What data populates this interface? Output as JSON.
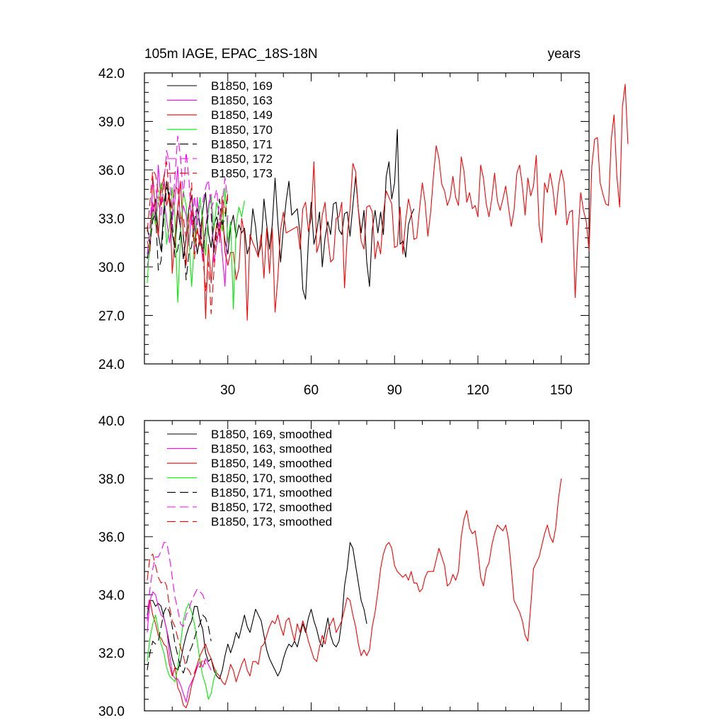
{
  "page": {
    "title_left": "105m IAGE, EPAC_18S-18N",
    "title_right": "years"
  },
  "chart_data": [
    {
      "type": "line",
      "title": "105m IAGE, EPAC_18S-18N",
      "ylabel": "",
      "xlabel": "",
      "right_label": "years",
      "xlim": [
        0,
        160
      ],
      "ylim": [
        24,
        42
      ],
      "xticks": [
        30,
        60,
        90,
        120,
        150
      ],
      "xtick_labels": [
        "30",
        "60",
        "90",
        "120",
        "150"
      ],
      "yticks": [
        24,
        27,
        30,
        33,
        36,
        39,
        42
      ],
      "ytick_labels": [
        "24.0",
        "27.0",
        "30.0",
        "33.0",
        "36.0",
        "39.0",
        "42.0"
      ],
      "legend_position": "top-left",
      "grid": false,
      "series": [
        {
          "name": "B1850, 169",
          "color": "#000000",
          "dash": "solid",
          "values": [
            30.5,
            31.5,
            33.4,
            34.2,
            32.0,
            31.0,
            33.7,
            35.3,
            34.0,
            32.0,
            31.2,
            33.5,
            32.4,
            30.5,
            31.8,
            33.6,
            34.4,
            32.5,
            30.8,
            31.9,
            33.5,
            34.6,
            32.1,
            31.2,
            32.6,
            33.1,
            32.2,
            32.9,
            31.6,
            30.8,
            32.5,
            33.2,
            31.8,
            32.6,
            32.1,
            32.4,
            30.8,
            31.4,
            33.6,
            32.5,
            30.7,
            31.4,
            34.2,
            32.6,
            31.1,
            32.6,
            35.5,
            32.8,
            30.3,
            32.4,
            34.1,
            35.3,
            33.2,
            33.4,
            33.6,
            32.0,
            28.6,
            28.0,
            31.6,
            34.0,
            31.4,
            32.2,
            33.4,
            30.0,
            31.8,
            32.8,
            32.0,
            33.9,
            34.0,
            32.3,
            32.0,
            33.3,
            33.4,
            31.9,
            33.8,
            35.6,
            33.5,
            32.1,
            33.5,
            30.3,
            28.8,
            32.3,
            33.5,
            32.1,
            33.4,
            32.0,
            35.6,
            36.5,
            34.2,
            35.2,
            38.5,
            31.4,
            31.6,
            30.6,
            32.6,
            33.2,
            33.6
          ]
        },
        {
          "name": "B1850, 163",
          "color": "#ff00ff",
          "dash": "solid",
          "values": [
            30.0,
            31.0,
            34.0,
            32.8,
            36.3,
            33.9,
            34.2,
            32.9,
            31.5,
            32.9,
            34.2,
            36.2,
            32.4,
            33.8,
            33.2,
            31.3,
            33.5,
            31.0,
            34.3,
            32.2,
            30.4,
            32.4,
            33.8,
            34.5,
            30.3,
            31.4,
            32.8,
            30.8,
            28.8,
            33.2
          ]
        },
        {
          "name": "B1850, 149",
          "color": "#ff0000",
          "dash": "solid",
          "values": [
            31.6,
            31.0,
            35.6,
            33.3,
            31.9,
            34.9,
            35.5,
            33.8,
            34.6,
            29.6,
            31.9,
            33.7,
            35.3,
            31.9,
            30.1,
            32.7,
            33.4,
            31.4,
            32.4,
            31.3,
            33.1,
            26.8,
            31.4,
            29.0,
            31.2,
            32.7,
            31.9,
            33.9,
            30.9,
            30.1,
            30.9,
            30.9,
            29.2,
            29.9,
            33.0,
            32.0,
            26.7,
            32.0,
            31.5,
            31.1,
            30.6,
            32.0,
            29.3,
            32.4,
            29.6,
            32.4,
            27.2,
            29.3,
            32.3,
            33.4,
            32.1,
            32.2,
            32.3,
            32.4,
            32.5,
            31.1,
            33.6,
            34.0,
            32.2,
            33.0,
            36.5,
            30.9,
            31.5,
            33.2,
            34.0,
            31.8,
            30.3,
            30.5,
            33.0,
            33.1,
            34.0,
            28.7,
            31.9,
            33.6,
            36.4,
            35.9,
            33.5,
            31.6,
            31.1,
            33.7,
            33.8,
            33.4,
            30.5,
            31.6,
            30.8,
            33.3,
            34.7,
            34.3,
            33.9,
            31.2,
            31.3,
            33.7,
            30.8,
            32.9,
            34.2,
            33.4,
            31.7,
            31.8,
            33.6,
            35.2,
            34.0,
            31.9,
            33.4,
            35.6,
            37.5,
            36.7,
            35.1,
            34.7,
            33.8,
            34.3,
            35.6,
            34.3,
            33.8,
            36.8,
            35.9,
            34.0,
            34.6,
            33.6,
            33.8,
            33.1,
            36.3,
            35.5,
            33.9,
            33.1,
            34.2,
            35.8,
            34.1,
            33.5,
            34.2,
            35.0,
            33.7,
            32.5,
            33.5,
            35.8,
            36.3,
            35.0,
            33.2,
            35.5,
            34.4,
            35.0,
            36.9,
            32.6,
            31.5,
            35.2,
            34.6,
            35.8,
            34.8,
            33.2,
            35.0,
            36.0,
            35.2,
            32.6,
            33.4,
            33.5,
            28.1,
            31.9,
            34.6,
            33.5,
            32.8,
            31.0,
            36.2,
            37.9,
            38.0,
            35.2,
            34.5,
            33.9,
            33.8,
            37.9,
            39.4,
            35.6,
            33.7,
            39.9,
            41.3,
            37.6
          ]
        },
        {
          "name": "B1850, 170",
          "color": "#00ee00",
          "dash": "solid",
          "values": [
            29.0,
            31.8,
            33.4,
            32.6,
            34.2,
            35.2,
            33.9,
            31.4,
            32.5,
            34.9,
            33.0,
            27.8,
            32.0,
            34.7,
            33.8,
            31.8,
            28.8,
            31.6,
            33.0,
            34.3,
            32.7,
            30.7,
            33.4,
            34.4,
            32.3,
            34.0,
            33.2,
            32.2,
            34.9,
            31.5,
            32.8,
            27.4,
            32.6,
            33.7,
            33.1,
            34.1
          ]
        },
        {
          "name": "B1850, 171",
          "color": "#000000",
          "dash": "dashed",
          "values": [
            32.5,
            31.4,
            32.9,
            33.4,
            29.8,
            30.4,
            33.1,
            34.9,
            34.5,
            32.8,
            30.6,
            31.1,
            32.2,
            32.0,
            29.2,
            30.8,
            31.3,
            32.9,
            33.6,
            32.6,
            30.9,
            32.3,
            33.3,
            33.3,
            30.9,
            32.3,
            34.2,
            32.6,
            33.0,
            34.5
          ]
        },
        {
          "name": "B1850, 172",
          "color": "#ff00ff",
          "dash": "dashed",
          "values": [
            30.8,
            32.4,
            35.1,
            34.9,
            34.0,
            33.2,
            35.2,
            37.2,
            36.4,
            33.2,
            35.7,
            38.1,
            36.8,
            34.3,
            37.1,
            35.5,
            32.6,
            34.4,
            32.6,
            33.8,
            34.0,
            34.9,
            35.4,
            33.6,
            34.1,
            34.8,
            32.9,
            33.9,
            35.5,
            34.1
          ]
        },
        {
          "name": "B1850, 173",
          "color": "#ff0000",
          "dash": "dashed",
          "values": [
            32.2,
            34.0,
            36.0,
            35.7,
            34.6,
            33.7,
            35.6,
            36.5,
            34.2,
            33.6,
            35.0,
            34.8,
            33.0,
            33.1,
            31.7,
            33.3,
            35.2,
            30.5,
            32.2,
            31.8,
            30.8,
            28.5,
            30.3,
            27.1,
            29.7,
            31.9,
            31.5,
            34.4,
            33.3,
            34.6
          ]
        }
      ]
    },
    {
      "type": "line",
      "title": "",
      "ylabel": "",
      "xlabel": "",
      "xlim": [
        0,
        160
      ],
      "ylim": [
        30,
        40
      ],
      "xticks": [
        30,
        60,
        90,
        120,
        150
      ],
      "yticks": [
        30,
        32,
        34,
        36,
        38,
        40
      ],
      "ytick_labels": [
        "30.0",
        "32.0",
        "34.0",
        "36.0",
        "38.0",
        "40.0"
      ],
      "legend_position": "top-left",
      "grid": false,
      "series": [
        {
          "name": "B1850, 169, smoothed",
          "color": "#000000",
          "dash": "solid",
          "values": [
            33.3,
            33.8,
            33.8,
            33.6,
            33.7,
            33.6,
            33.2,
            32.8,
            32.3,
            31.8,
            31.5,
            31.4,
            31.7,
            32.2,
            32.6,
            32.9,
            33.1,
            33.6,
            33.6,
            33.1,
            32.8,
            32.0,
            31.7,
            31.8,
            31.4,
            31.2,
            31.1,
            31.4,
            31.9,
            32.3,
            32.0,
            32.3,
            32.7,
            32.5,
            32.9,
            33.3,
            32.9,
            32.7,
            33.1,
            33.5,
            33.3,
            33.1,
            32.6,
            32.1,
            31.8,
            31.6,
            31.4,
            31.2,
            31.4,
            31.8,
            32.1,
            32.3,
            32.2,
            32.4,
            32.2,
            32.6,
            33.0,
            32.7,
            33.2,
            33.5,
            33.1,
            32.8,
            32.4,
            32.2,
            32.7,
            33.2,
            32.6,
            32.3,
            32.2,
            32.4,
            33.1,
            34.3,
            34.9,
            35.8,
            35.6,
            35.0,
            34.4,
            33.8,
            33.5,
            33.0
          ]
        },
        {
          "name": "B1850, 163, smoothed",
          "color": "#ff00ff",
          "dash": "solid",
          "values": [
            32.7,
            33.8,
            34.1,
            34.0,
            33.6,
            33.3,
            33.2,
            32.8,
            32.0,
            31.3,
            31.1,
            31.1,
            30.9,
            30.6,
            30.3,
            30.8,
            31.0,
            31.2,
            31.5,
            31.7,
            31.5,
            31.8,
            31.6,
            31.4
          ]
        },
        {
          "name": "B1850, 149, smoothed",
          "color": "#ff0000",
          "dash": "solid",
          "values": [
            33.5,
            33.8,
            33.3,
            33.0,
            32.6,
            32.5,
            32.3,
            32.2,
            31.6,
            31.2,
            31.5,
            30.8,
            30.6,
            30.2,
            30.1,
            30.4,
            30.9,
            31.2,
            31.6,
            31.9,
            32.1,
            32.3,
            32.0,
            31.8,
            31.5,
            31.3,
            31.2,
            31.0,
            30.9,
            31.2,
            31.6,
            31.4,
            31.0,
            31.3,
            31.6,
            31.8,
            31.4,
            31.2,
            31.7,
            31.7,
            31.6,
            32.2,
            32.3,
            32.6,
            32.9,
            33.1,
            33.0,
            33.3,
            32.9,
            32.6,
            33.1,
            33.2,
            32.8,
            32.4,
            33.0,
            32.7,
            33.1,
            32.8,
            32.4,
            32.1,
            31.8,
            31.7,
            32.2,
            32.6,
            32.3,
            32.8,
            33.0,
            33.2,
            32.7,
            32.9,
            33.1,
            33.5,
            33.9,
            33.8,
            33.3,
            32.9,
            32.3,
            31.9,
            32.1,
            31.9,
            32.1,
            32.9,
            33.4,
            34.1,
            34.9,
            35.4,
            35.7,
            35.8,
            35.6,
            35.0,
            34.8,
            34.7,
            34.6,
            34.7,
            34.5,
            34.8,
            34.4,
            34.4,
            34.1,
            34.2,
            34.6,
            34.8,
            34.8,
            34.8,
            35.2,
            35.6,
            35.3,
            35.0,
            34.3,
            34.4,
            34.7,
            34.5,
            34.8,
            36.0,
            36.6,
            36.9,
            36.3,
            36.1,
            36.2,
            35.5,
            34.6,
            34.3,
            34.9,
            35.1,
            35.7,
            36.1,
            36.4,
            36.3,
            36.2,
            36.4,
            35.9,
            34.9,
            33.8,
            33.6,
            33.4,
            33.1,
            32.6,
            32.4,
            33.6,
            34.9,
            35.1,
            35.3,
            35.7,
            36.1,
            36.4,
            36.0,
            35.8,
            36.3,
            37.3,
            38.0
          ]
        },
        {
          "name": "B1850, 170, smoothed",
          "color": "#00ee00",
          "dash": "solid",
          "values": [
            31.7,
            32.5,
            33.0,
            33.3,
            32.8,
            32.3,
            32.0,
            31.5,
            31.2,
            31.1,
            31.0,
            31.5,
            32.3,
            33.1,
            33.5,
            33.7,
            33.4,
            33.0,
            32.4,
            31.7,
            31.2,
            30.9,
            30.4,
            30.6,
            31.1,
            31.4
          ]
        },
        {
          "name": "B1850, 171, smoothed",
          "color": "#000000",
          "dash": "dashed",
          "values": [
            31.4,
            32.0,
            32.4,
            32.3,
            32.4,
            32.9,
            33.4,
            33.6,
            33.4,
            32.9,
            32.3,
            31.9,
            31.5,
            31.3,
            31.6,
            32.0,
            32.2,
            32.5,
            32.8,
            33.0,
            33.3,
            33.2,
            32.9,
            32.4
          ]
        },
        {
          "name": "B1850, 172, smoothed",
          "color": "#ff00ff",
          "dash": "dashed",
          "values": [
            33.1,
            34.2,
            34.9,
            35.3,
            35.3,
            35.5,
            35.8,
            35.8,
            35.3,
            34.6,
            33.9,
            33.5,
            33.0,
            32.9,
            33.3,
            33.5,
            33.8,
            34.0,
            34.2,
            34.1,
            34.0,
            33.7
          ]
        },
        {
          "name": "B1850, 173, smoothed",
          "color": "#ff0000",
          "dash": "dashed",
          "values": [
            34.5,
            35.3,
            35.4,
            35.0,
            34.6,
            34.4,
            34.5,
            34.3,
            33.6,
            33.1,
            32.9,
            32.5,
            32.2,
            31.9,
            31.5,
            31.4,
            31.2,
            31.3,
            31.6,
            31.5,
            31.8,
            31.6
          ]
        }
      ]
    }
  ]
}
